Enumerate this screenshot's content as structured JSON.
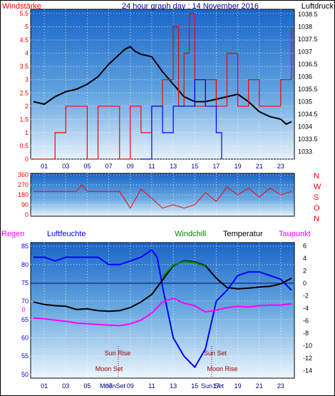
{
  "chart_data": [
    {
      "type": "line",
      "name": "wind-pressure",
      "title": "24 hour graph day : 14 November 2016",
      "ylabel_left": "Windstärke",
      "ylabel_right": "Luftdruck",
      "x_ticks": [
        "01",
        "03",
        "05",
        "07",
        "09",
        "11",
        "13",
        "15",
        "17",
        "19",
        "21",
        "23"
      ],
      "y_left_ticks": [
        "0",
        "0.5",
        "1",
        "1.5",
        "2",
        "2.5",
        "3",
        "3.5",
        "4",
        "4.5",
        "5",
        "5.5"
      ],
      "y_left_lim": [
        0,
        5.5
      ],
      "y_right_ticks": [
        "1033",
        "1033.5",
        "1034",
        "1034.5",
        "1035",
        "1035.5",
        "1036",
        "1036.5",
        "1037",
        "1037.5",
        "1038",
        "1038.5"
      ],
      "y_right_lim": [
        1032.7,
        1038.7
      ],
      "series": [
        {
          "name": "Luftdruck",
          "color": "#000000",
          "x": [
            0,
            1,
            2,
            3,
            4,
            5,
            6,
            7,
            8,
            8.5,
            9,
            9.5,
            10,
            11,
            12,
            13,
            14,
            15,
            16,
            17,
            18,
            19,
            20,
            21,
            22,
            23,
            23.5,
            24
          ],
          "values": [
            1035.0,
            1034.9,
            1035.2,
            1035.4,
            1035.5,
            1035.7,
            1036.0,
            1036.5,
            1036.9,
            1037.1,
            1037.2,
            1037.0,
            1036.9,
            1036.8,
            1036.2,
            1035.7,
            1035.2,
            1035.0,
            1035.0,
            1035.1,
            1035.2,
            1035.3,
            1035.0,
            1034.6,
            1034.4,
            1034.3,
            1034.1,
            1034.2
          ]
        },
        {
          "name": "Wind",
          "color": "#ff0000",
          "x": [
            0,
            2,
            3,
            5,
            6,
            8,
            9,
            10,
            11,
            12,
            13,
            13.5,
            14,
            14.5,
            15,
            16,
            17,
            18,
            19,
            20,
            21,
            22,
            23,
            24
          ],
          "values": [
            0,
            1,
            2,
            0,
            2,
            0,
            2,
            1,
            2,
            3,
            5,
            2,
            4,
            5.5,
            2,
            3,
            2,
            4,
            2,
            3,
            2,
            2,
            3,
            5
          ]
        },
        {
          "name": "Boeen",
          "color": "#0000ff",
          "x": [
            10,
            11,
            12,
            13,
            14,
            15,
            16,
            17,
            17.5
          ],
          "values": [
            0,
            2,
            1,
            2,
            2,
            3,
            2,
            1,
            0
          ]
        }
      ]
    },
    {
      "type": "scatter",
      "name": "wind-direction",
      "y_ticks": [
        "360",
        "270",
        "180",
        "90",
        "0"
      ],
      "y_lim": [
        0,
        360
      ],
      "direction_labels": [
        "N",
        "W",
        "S",
        "O",
        "N"
      ],
      "series": [
        {
          "name": "Windrichtung",
          "color": "#ff0000",
          "x": [
            0,
            4,
            4.5,
            5,
            8,
            9,
            10,
            11,
            12,
            13,
            14,
            15,
            16,
            17,
            18,
            19,
            20,
            21,
            22,
            23,
            24
          ],
          "values": [
            210,
            210,
            270,
            210,
            210,
            60,
            230,
            150,
            60,
            90,
            60,
            90,
            200,
            120,
            250,
            180,
            240,
            160,
            240,
            180,
            210
          ]
        }
      ]
    },
    {
      "type": "line",
      "name": "humidity-temperature",
      "legend": {
        "regen": "Regen",
        "luftfeuchte": "Luftfeuchte",
        "windchill": "Windchill",
        "temperatur": "Temperatur",
        "taupunkt": "Taupunkt"
      },
      "y_left_ticks": [
        "85",
        "80",
        "75",
        "70",
        "65",
        "60",
        "55",
        "50"
      ],
      "y_left_lim": [
        49,
        86
      ],
      "y_right_ticks": [
        "6",
        "4",
        "2",
        "0",
        "-2",
        "-4",
        "-6",
        "-8",
        "-10",
        "-12",
        "-14"
      ],
      "y_right_lim": [
        -15.2,
        6.5
      ],
      "regen_axis_label": "0",
      "x_ticks": [
        "01",
        "03",
        "05",
        "07",
        "09",
        "11",
        "13",
        "15",
        "17",
        "19",
        "21",
        "23"
      ],
      "annotations": [
        "Sun Rise",
        "Moon Set",
        "Sun Set",
        "Moon Rise",
        "MoonSet",
        "Sun Set"
      ],
      "series": [
        {
          "name": "Luftfeuchte",
          "color": "#0000ff",
          "x": [
            0,
            1,
            2,
            3,
            4,
            5,
            6,
            7,
            8,
            9,
            10,
            11,
            11.5,
            12,
            13,
            14,
            15,
            16,
            17,
            18,
            19,
            20,
            21,
            22,
            23,
            24
          ],
          "values": [
            82,
            82,
            81,
            82,
            82,
            82,
            82,
            80,
            80,
            81,
            82,
            84,
            82,
            74,
            60,
            55,
            52,
            57,
            70,
            73,
            77,
            78,
            78,
            77,
            76,
            73
          ]
        },
        {
          "name": "Temperatur",
          "color": "#000000",
          "x": [
            0,
            1,
            2,
            3,
            4,
            5,
            6,
            7,
            8,
            9,
            10,
            11,
            12,
            13,
            14,
            15,
            16,
            17,
            18,
            19,
            20,
            21,
            22,
            23,
            24
          ],
          "values": [
            -3.0,
            -3.4,
            -3.6,
            -3.7,
            -4.2,
            -4.1,
            -4.4,
            -4.5,
            -4.4,
            -3.9,
            -3.0,
            -1.8,
            0.5,
            2.8,
            3.6,
            3.4,
            2.8,
            0.8,
            -0.7,
            -0.9,
            -0.8,
            -0.6,
            -0.5,
            -0.1,
            0.8
          ]
        },
        {
          "name": "Windchill",
          "color": "#008800",
          "x": [
            12,
            13,
            14,
            15,
            16
          ],
          "values": [
            1.0,
            2.9,
            3.5,
            3.3,
            2.7
          ]
        },
        {
          "name": "Taupunkt",
          "color": "#ff00ff",
          "x": [
            0,
            1,
            2,
            3,
            4,
            5,
            6,
            7,
            8,
            9,
            10,
            11,
            12,
            13,
            14,
            15,
            16,
            17,
            18,
            19,
            20,
            21,
            22,
            23,
            24
          ],
          "values": [
            -5.6,
            -5.7,
            -5.9,
            -6.1,
            -6.4,
            -6.5,
            -6.6,
            -6.7,
            -6.8,
            -6.5,
            -5.9,
            -4.8,
            -3.0,
            -2.4,
            -3.2,
            -3.6,
            -4.6,
            -4.3,
            -3.9,
            -3.7,
            -3.8,
            -3.6,
            -3.5,
            -3.5,
            -3.3
          ]
        }
      ]
    }
  ]
}
